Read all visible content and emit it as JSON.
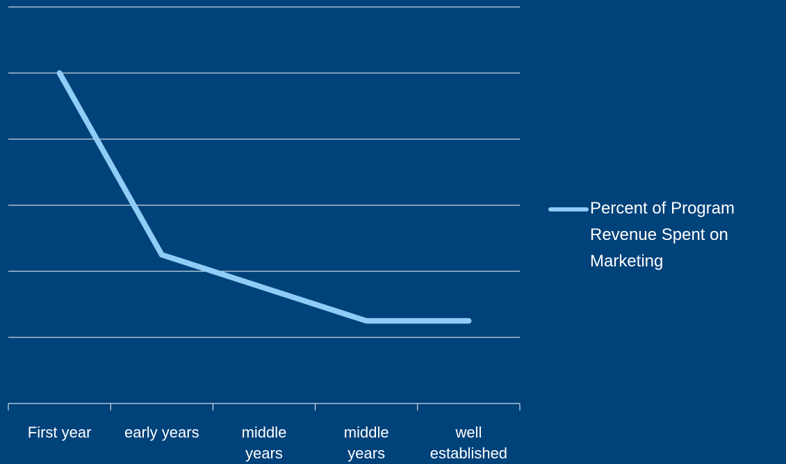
{
  "chart_data": {
    "type": "line",
    "categories": [
      "First year",
      "early years",
      "middle\nyears",
      "middle\nyears",
      "well\nestablished"
    ],
    "series": [
      {
        "name": "Percent of Program Revenue Spent on Marketing",
        "color": "#8fcdf7",
        "values": [
          5,
          2.25,
          1.75,
          1.25,
          1.25
        ]
      }
    ],
    "ylim": [
      0,
      6
    ],
    "yticks": [
      0,
      1,
      2,
      3,
      4,
      5,
      6
    ],
    "grid": true,
    "legend": "right"
  }
}
